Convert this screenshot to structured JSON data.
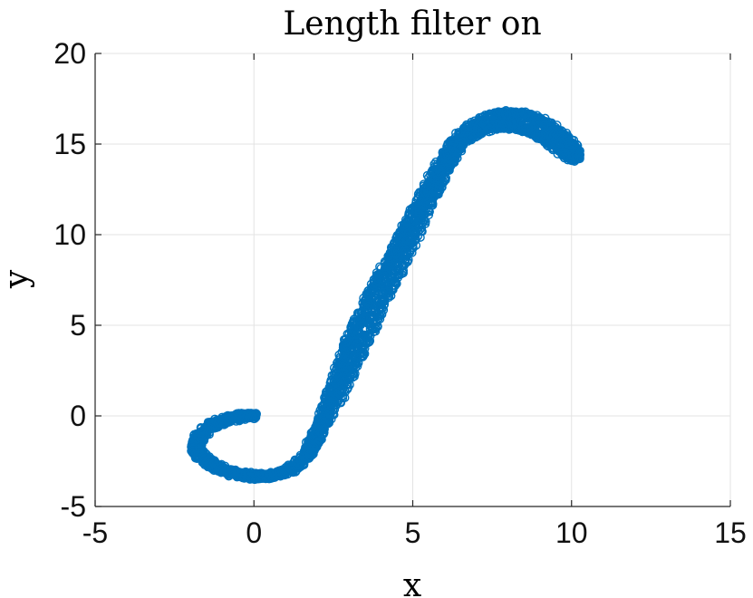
{
  "chart_data": {
    "type": "scatter",
    "title": "Length filter on",
    "xlabel": "x",
    "ylabel": "y",
    "xlim": [
      -5,
      15
    ],
    "ylim": [
      -5,
      20
    ],
    "xticks": [
      "-5",
      "0",
      "5",
      "10",
      "15"
    ],
    "yticks": [
      "-5",
      "0",
      "5",
      "10",
      "15",
      "20"
    ],
    "grid": true,
    "marker": "open-circle",
    "color": "#0072BD",
    "series": [
      {
        "name": "",
        "points": [
          [
            0.0,
            0.0
          ],
          [
            -0.3,
            0.0
          ],
          [
            -0.6,
            -0.1
          ],
          [
            -0.9,
            -0.2
          ],
          [
            -1.2,
            -0.4
          ],
          [
            -1.5,
            -0.7
          ],
          [
            -1.7,
            -1.1
          ],
          [
            -1.8,
            -1.5
          ],
          [
            -1.8,
            -1.9
          ],
          [
            -1.6,
            -2.3
          ],
          [
            -1.3,
            -2.7
          ],
          [
            -1.0,
            -3.0
          ],
          [
            -0.6,
            -3.2
          ],
          [
            -0.2,
            -3.3
          ],
          [
            0.2,
            -3.35
          ],
          [
            0.6,
            -3.3
          ],
          [
            1.0,
            -3.1
          ],
          [
            1.3,
            -2.8
          ],
          [
            1.6,
            -2.3
          ],
          [
            1.8,
            -1.8
          ],
          [
            2.0,
            -1.0
          ],
          [
            2.2,
            0.0
          ],
          [
            2.4,
            1.0
          ],
          [
            2.6,
            2.0
          ],
          [
            2.8,
            3.0
          ],
          [
            3.0,
            4.0
          ],
          [
            3.2,
            5.0
          ],
          [
            3.5,
            6.0
          ],
          [
            3.8,
            7.0
          ],
          [
            4.1,
            8.0
          ],
          [
            4.4,
            9.0
          ],
          [
            4.7,
            10.0
          ],
          [
            5.0,
            11.0
          ],
          [
            5.3,
            12.0
          ],
          [
            5.6,
            13.0
          ],
          [
            5.9,
            14.0
          ],
          [
            6.3,
            15.0
          ],
          [
            6.7,
            15.8
          ],
          [
            7.2,
            16.3
          ],
          [
            7.7,
            16.6
          ],
          [
            8.2,
            16.7
          ],
          [
            8.7,
            16.5
          ],
          [
            9.2,
            16.1
          ],
          [
            9.6,
            15.6
          ],
          [
            9.9,
            15.1
          ],
          [
            10.1,
            14.6
          ],
          [
            10.1,
            14.2
          ],
          [
            9.9,
            14.4
          ],
          [
            9.6,
            14.8
          ],
          [
            9.3,
            15.2
          ],
          [
            8.9,
            15.6
          ],
          [
            8.4,
            15.9
          ],
          [
            7.9,
            16.0
          ],
          [
            7.4,
            15.9
          ],
          [
            6.9,
            15.6
          ],
          [
            6.5,
            15.1
          ],
          [
            6.2,
            14.2
          ],
          [
            5.9,
            13.2
          ],
          [
            5.6,
            12.0
          ],
          [
            5.2,
            10.5
          ],
          [
            4.8,
            9.0
          ],
          [
            4.4,
            7.5
          ],
          [
            4.0,
            6.0
          ],
          [
            3.6,
            4.5
          ],
          [
            3.2,
            3.0
          ],
          [
            2.8,
            1.5
          ],
          [
            2.4,
            0.2
          ],
          [
            2.0,
            -1.0
          ],
          [
            1.7,
            -2.0
          ]
        ]
      }
    ]
  }
}
